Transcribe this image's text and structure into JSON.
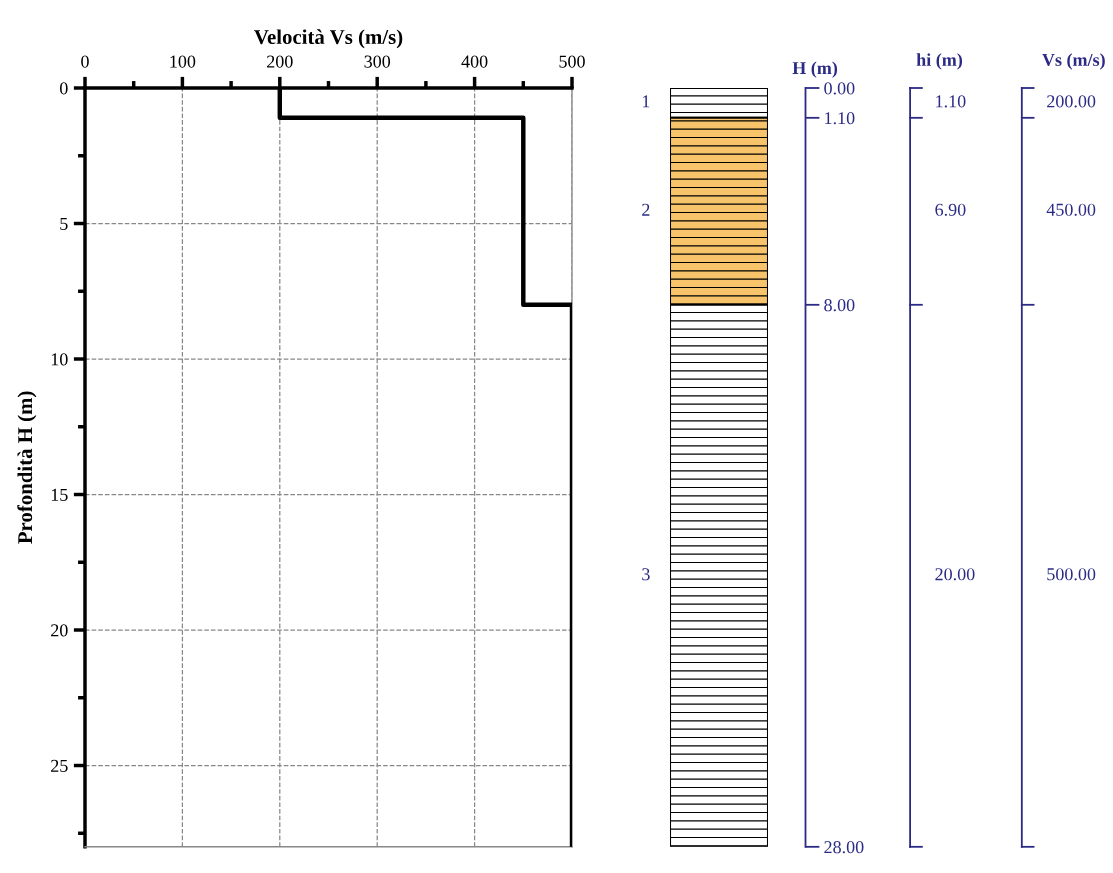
{
  "chart_data": [
    {
      "type": "line",
      "xlabel": "Velocità Vs (m/s)",
      "ylabel": "Profondità H (m)",
      "grid": true,
      "series": [
        {
          "color": "#000000",
          "x": [
            200,
            200,
            450,
            450,
            500,
            500
          ],
          "values": [
            0,
            1.1,
            1.1,
            8,
            8,
            28
          ]
        }
      ],
      "xlim": [
        0,
        500
      ],
      "xticks": [
        0,
        {
          "value": 50,
          "label": null
        },
        100,
        {
          "value": 150,
          "label": null
        },
        200,
        {
          "value": 250,
          "label": null
        },
        300,
        {
          "value": 350,
          "label": null
        },
        400,
        {
          "value": 450,
          "label": null
        },
        500
      ],
      "ylim": [
        28,
        0
      ],
      "yticks": [
        0,
        {
          "value": 2.5,
          "label": null
        },
        5,
        {
          "value": 7.5,
          "label": null
        },
        10,
        {
          "value": 12.5,
          "label": null
        },
        15,
        {
          "value": 17.5,
          "label": null
        },
        20,
        {
          "value": 22.5,
          "label": null
        },
        25,
        {
          "value": 27.5,
          "label": null
        }
      ]
    },
    {
      "type": "bar",
      "stacked": true,
      "categories": [
        null
      ],
      "ylabel": "H (m)",
      "tick_labels": "y",
      "series": [
        {
          "name": "1",
          "color": "#ffffff",
          "values": [
            1.1
          ]
        },
        {
          "name": "2",
          "color": "#f7c46c",
          "values": [
            6.9
          ]
        },
        {
          "name": "3",
          "color": "#ffffff",
          "values": [
            20
          ]
        }
      ],
      "ylim": [
        28,
        0
      ],
      "yticks": [
        {
          "value": 0,
          "label": "0.00"
        },
        {
          "value": 1.1,
          "label": "1.10"
        },
        {
          "value": 8,
          "label": "8.00"
        },
        {
          "value": 28,
          "label": "28.00"
        }
      ],
      "annotations": [
        "hi (m)",
        "1.10",
        "6.90",
        "20.00",
        "Vs (m/s)",
        "200.00",
        "450.00",
        "500.00"
      ]
    }
  ]
}
